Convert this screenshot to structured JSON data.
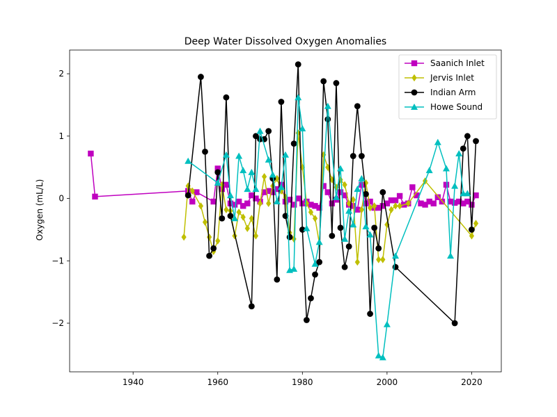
{
  "chart_data": {
    "type": "line",
    "title": "Deep Water Dissolved Oxygen Anomalies",
    "xlabel": "",
    "ylabel": "Oxygen (mL/L)",
    "xlim": [
      1925,
      2027
    ],
    "ylim": [
      -2.78,
      2.38
    ],
    "xticks": [
      1940,
      1960,
      1980,
      2000,
      2020
    ],
    "yticks": [
      -2,
      -1,
      0,
      1,
      2
    ],
    "ytick_labels": [
      "−2",
      "−1",
      "0",
      "1",
      "2"
    ],
    "grid": false,
    "legend_position": "upper right",
    "series": [
      {
        "name": "Saanich Inlet",
        "color": "#bf00bf",
        "marker": "square",
        "x": [
          1930,
          1931,
          1953,
          1954,
          1955,
          1959,
          1960,
          1961,
          1962,
          1963,
          1964,
          1965,
          1966,
          1967,
          1968,
          1969,
          1970,
          1971,
          1972,
          1973,
          1974,
          1975,
          1976,
          1977,
          1978,
          1979,
          1980,
          1981,
          1982,
          1983,
          1984,
          1985,
          1986,
          1987,
          1988,
          1989,
          1990,
          1991,
          1992,
          1993,
          1994,
          1995,
          1996,
          1997,
          1998,
          1999,
          2000,
          2001,
          2002,
          2003,
          2004,
          2005,
          2006,
          2007,
          2008,
          2009,
          2010,
          2011,
          2012,
          2013,
          2014,
          2015,
          2016,
          2017,
          2018,
          2019,
          2020,
          2021
        ],
        "y": [
          0.72,
          0.03,
          0.12,
          -0.05,
          0.1,
          -0.05,
          0.48,
          0.15,
          0.22,
          -0.08,
          -0.1,
          -0.05,
          -0.12,
          -0.08,
          0.05,
          0.0,
          -0.05,
          0.1,
          0.12,
          0.1,
          0.15,
          0.22,
          -0.05,
          -0.02,
          -0.1,
          0.0,
          -0.08,
          -0.05,
          -0.1,
          -0.12,
          -0.15,
          0.2,
          0.1,
          -0.08,
          -0.02,
          0.1,
          0.05,
          -0.1,
          -0.12,
          -0.18,
          0.22,
          -0.08,
          -0.05,
          -0.15,
          -0.15,
          -0.12,
          -0.08,
          -0.03,
          -0.03,
          0.04,
          -0.1,
          -0.08,
          0.18,
          0.05,
          -0.08,
          -0.1,
          -0.05,
          -0.08,
          0.02,
          -0.05,
          0.22,
          -0.05,
          -0.07,
          -0.05,
          -0.08,
          -0.05,
          -0.1,
          0.05
        ]
      },
      {
        "name": "Jervis Inlet",
        "color": "#bfbf00",
        "marker": "diamond",
        "x": [
          1952,
          1953,
          1954,
          1956,
          1957,
          1958,
          1959,
          1960,
          1961,
          1962,
          1963,
          1964,
          1965,
          1966,
          1967,
          1968,
          1969,
          1970,
          1971,
          1972,
          1973,
          1974,
          1975,
          1976,
          1977,
          1978,
          1979,
          1980,
          1981,
          1982,
          1983,
          1984,
          1985,
          1986,
          1987,
          1988,
          1989,
          1990,
          1991,
          1992,
          1993,
          1994,
          1995,
          1996,
          1997,
          1998,
          1999,
          2000,
          2001,
          2002,
          2003,
          2005,
          2009,
          2020,
          2021
        ],
        "y": [
          -0.62,
          0.2,
          0.12,
          -0.12,
          -0.38,
          -0.62,
          -0.85,
          -0.68,
          0.22,
          -0.18,
          -0.2,
          -0.6,
          -0.22,
          -0.3,
          -0.48,
          -0.32,
          -0.6,
          -0.08,
          0.35,
          -0.08,
          0.2,
          0.32,
          0.12,
          0.02,
          -0.55,
          -0.65,
          1.05,
          0.5,
          -0.08,
          -0.22,
          -0.32,
          -0.72,
          0.7,
          0.5,
          0.3,
          0.18,
          0.3,
          0.22,
          -0.08,
          -0.02,
          -1.02,
          -0.18,
          0.25,
          -0.15,
          -0.12,
          -0.98,
          -0.98,
          -0.42,
          -0.18,
          -0.12,
          -0.12,
          -0.08,
          0.28,
          -0.6,
          -0.4
        ]
      },
      {
        "name": "Indian Arm",
        "color": "#000000",
        "marker": "circle",
        "x": [
          1953,
          1956,
          1957,
          1958,
          1959,
          1960,
          1961,
          1962,
          1963,
          1968,
          1969,
          1970,
          1971,
          1972,
          1973,
          1974,
          1975,
          1976,
          1977,
          1978,
          1979,
          1980,
          1981,
          1982,
          1983,
          1984,
          1985,
          1986,
          1987,
          1988,
          1989,
          1990,
          1991,
          1992,
          1993,
          1994,
          1995,
          1996,
          1997,
          1998,
          1999,
          2002,
          2016,
          2018,
          2019,
          2020,
          2021
        ],
        "y": [
          0.05,
          1.95,
          0.75,
          -0.92,
          -0.8,
          0.42,
          -0.32,
          1.62,
          -0.28,
          -1.73,
          1.0,
          0.95,
          0.95,
          1.08,
          0.32,
          -1.3,
          1.55,
          -0.28,
          -0.62,
          0.88,
          2.15,
          -0.5,
          -1.95,
          -1.6,
          -1.22,
          -1.02,
          1.88,
          1.27,
          -0.6,
          1.85,
          -0.47,
          -1.1,
          -0.77,
          0.68,
          1.48,
          0.68,
          0.07,
          -1.85,
          -0.47,
          -0.8,
          0.1,
          -1.1,
          -2.0,
          0.8,
          1.0,
          -0.5,
          0.92
        ]
      },
      {
        "name": "Howe Sound",
        "color": "#00bfbf",
        "marker": "triangle",
        "x": [
          1953,
          1960,
          1962,
          1963,
          1964,
          1965,
          1966,
          1967,
          1968,
          1969,
          1970,
          1972,
          1973,
          1974,
          1975,
          1976,
          1977,
          1978,
          1979,
          1980,
          1981,
          1983,
          1984,
          1986,
          1988,
          1989,
          1990,
          1991,
          1992,
          1993,
          1994,
          1995,
          1996,
          1998,
          1999,
          2000,
          2002,
          2010,
          2012,
          2014,
          2015,
          2016,
          2017,
          2018,
          2019
        ],
        "y": [
          0.6,
          0.25,
          0.7,
          0.05,
          -0.32,
          0.68,
          0.45,
          0.15,
          0.42,
          0.15,
          1.08,
          0.62,
          0.38,
          -0.05,
          0.18,
          0.7,
          -1.15,
          -1.13,
          1.62,
          1.12,
          -0.48,
          -1.05,
          -0.7,
          1.48,
          0.02,
          0.48,
          -0.65,
          -0.2,
          -0.42,
          0.15,
          0.32,
          -0.45,
          -0.58,
          -2.52,
          -2.55,
          -2.02,
          -0.92,
          0.45,
          0.9,
          0.48,
          -0.92,
          0.2,
          0.72,
          0.08,
          0.08
        ]
      }
    ]
  }
}
